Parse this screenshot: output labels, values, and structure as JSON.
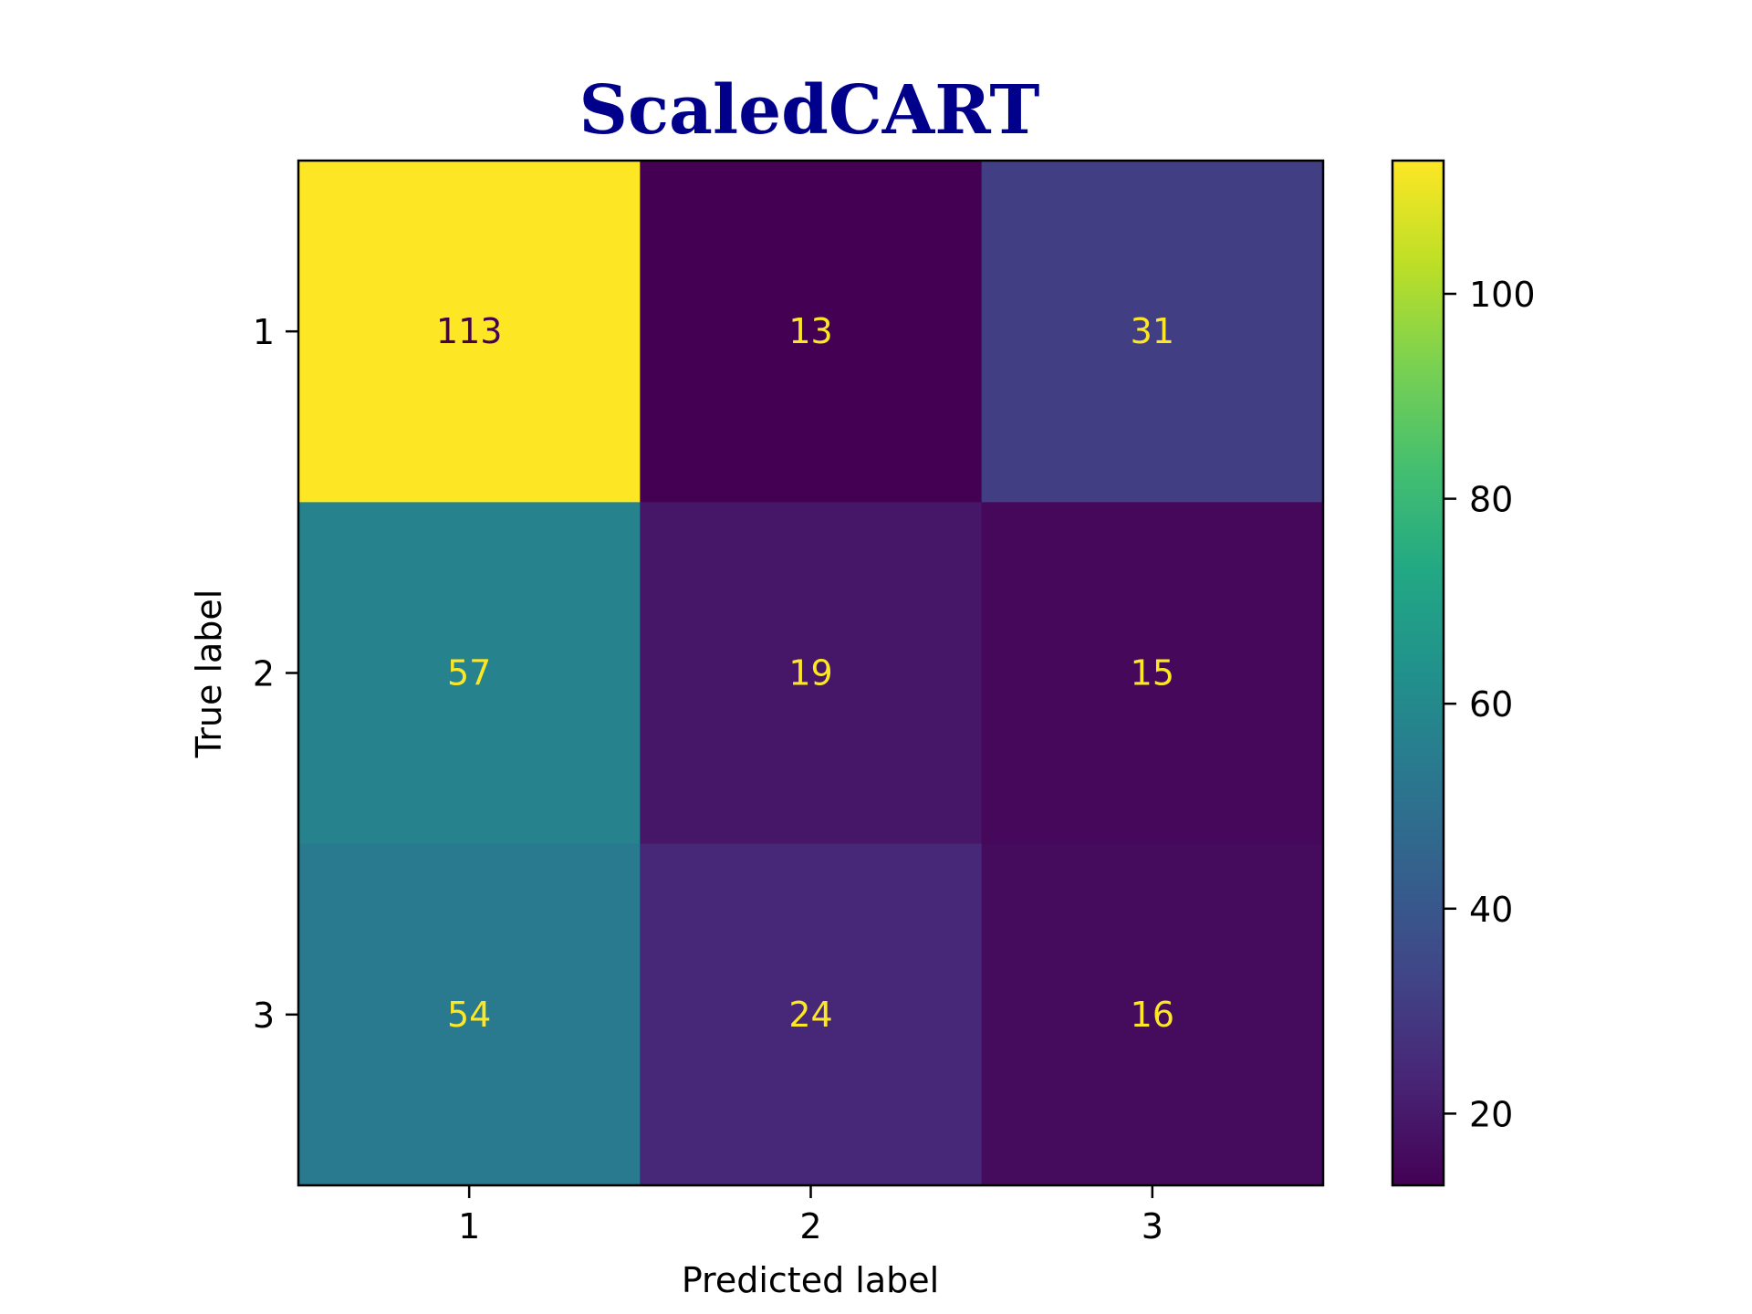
{
  "chart_data": {
    "type": "heatmap",
    "title": "ScaledCART",
    "title_color": "#00008b",
    "xlabel": "Predicted label",
    "ylabel": "True label",
    "x_categories": [
      "1",
      "2",
      "3"
    ],
    "y_categories": [
      "1",
      "2",
      "3"
    ],
    "values": [
      [
        113,
        13,
        31
      ],
      [
        57,
        19,
        15
      ],
      [
        54,
        24,
        16
      ]
    ],
    "colormap": "viridis",
    "color_range": [
      13,
      113
    ],
    "colorbar_ticks": [
      20,
      40,
      60,
      80,
      100
    ],
    "colorbar_tick_labels": [
      "20",
      "40",
      "60",
      "80",
      "100"
    ],
    "label_color_dark": "#440154",
    "label_color_light": "#fde725",
    "grid": false,
    "colorbar_position": "right"
  }
}
